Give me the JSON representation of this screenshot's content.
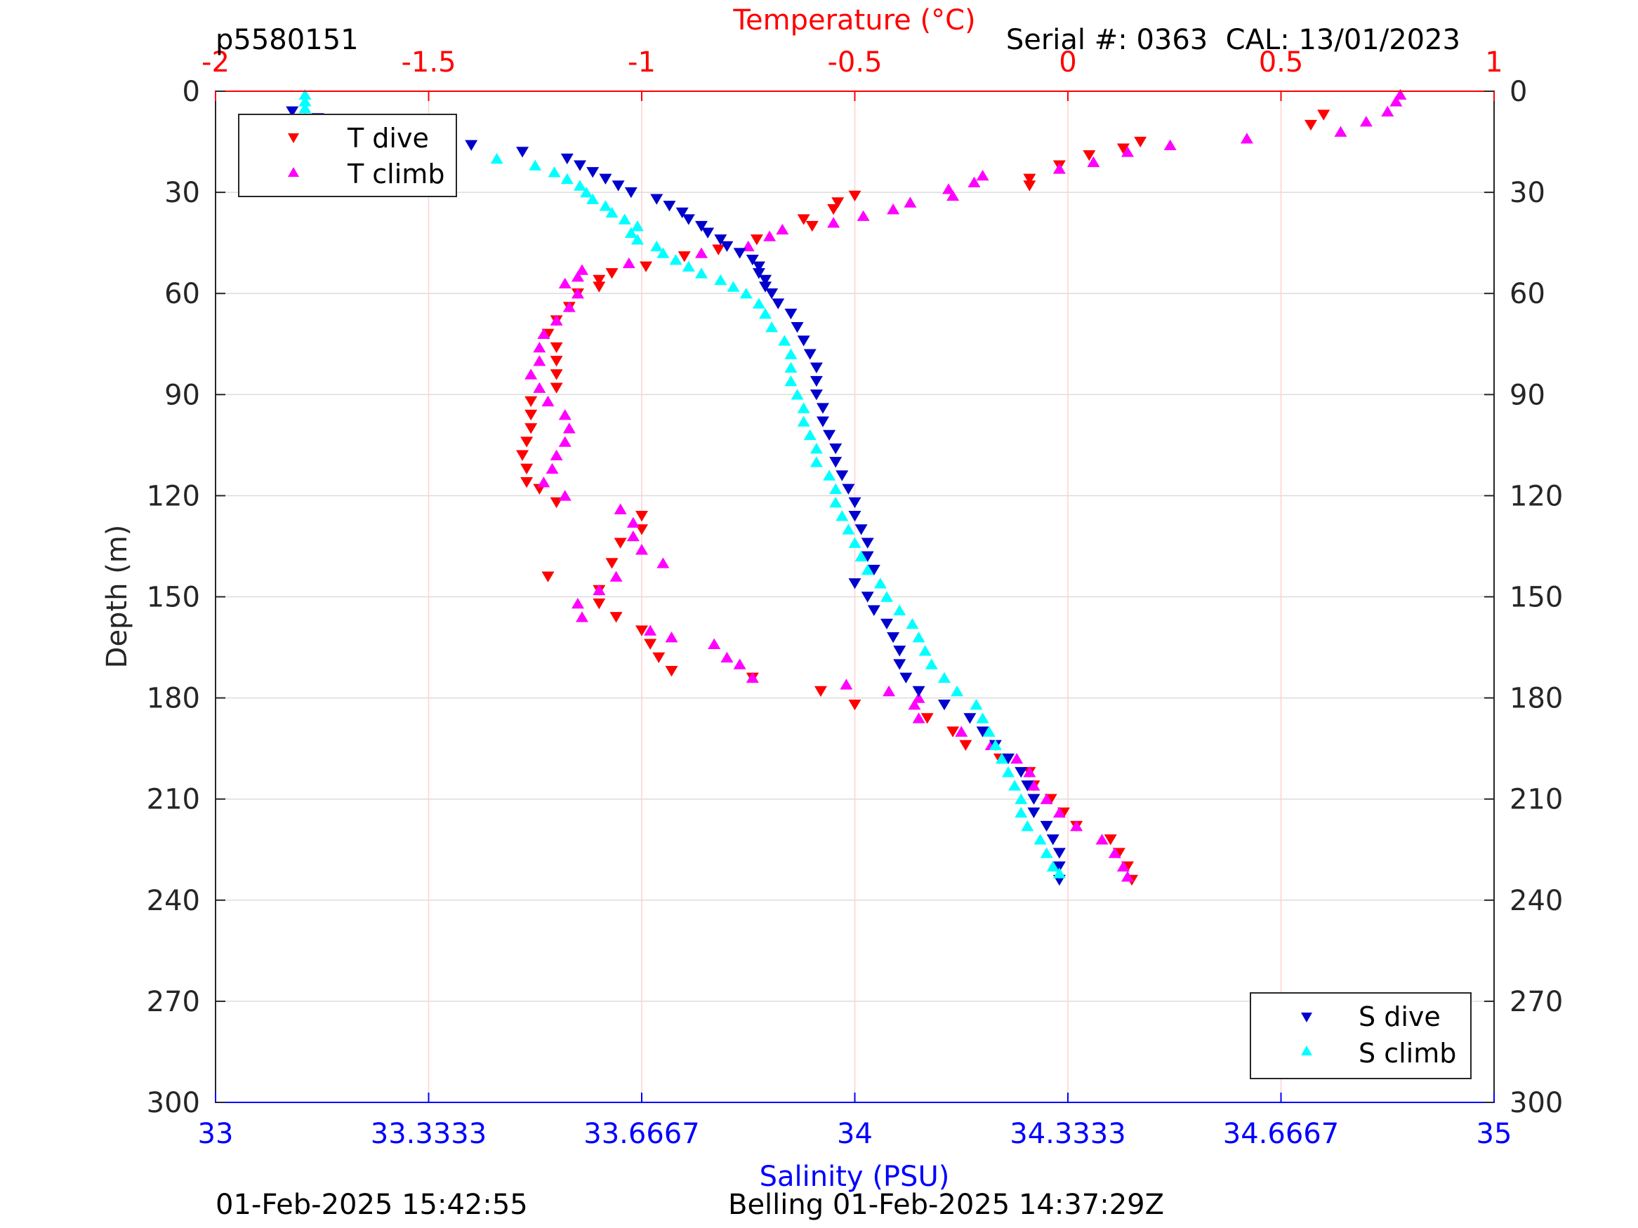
{
  "header": {
    "profile_id": "p5580151",
    "serial_cal": "Serial #: 0363  CAL: 13/01/2023"
  },
  "footer": {
    "plot_time": "01-Feb-2025 15:42:55",
    "station_time": "Belling 01-Feb-2025 14:37:29Z"
  },
  "colors": {
    "temperature_axis": "#ff0000",
    "salinity_axis": "#0000ff",
    "t_dive": "#ff0000",
    "t_climb": "#ff00ff",
    "s_dive": "#0000cc",
    "s_climb": "#00ffff"
  },
  "chart_data": {
    "type": "scatter",
    "ylabel": "Depth (m)",
    "ylim": [
      0,
      300
    ],
    "y_reversed": true,
    "yticks": [
      "0",
      "30",
      "60",
      "90",
      "120",
      "150",
      "180",
      "210",
      "240",
      "270",
      "300"
    ],
    "x_top": {
      "label": "Temperature (°C)",
      "lim": [
        -2,
        1
      ],
      "ticks": [
        "-2",
        "-1.5",
        "-1",
        "-0.5",
        "0",
        "0.5",
        "1"
      ]
    },
    "x_bottom": {
      "label": "Salinity (PSU)",
      "lim": [
        33,
        35
      ],
      "ticks": [
        "33",
        "33.3333",
        "33.6667",
        "34",
        "34.3333",
        "34.6667",
        "35"
      ]
    },
    "grid": true,
    "legend_temperature": {
      "placement": "top-left",
      "entries": [
        "T dive",
        "T climb"
      ]
    },
    "legend_salinity": {
      "placement": "bottom-right",
      "entries": [
        "S dive",
        "S climb"
      ]
    },
    "series": [
      {
        "name": "T dive",
        "axis": "temperature",
        "marker": "triangle-down",
        "depth": [
          7,
          10,
          15,
          17,
          19,
          22,
          26,
          28,
          31,
          33,
          35,
          38,
          40,
          44,
          47,
          49,
          52,
          54,
          56,
          58,
          60,
          64,
          68,
          72,
          76,
          80,
          84,
          88,
          92,
          96,
          100,
          104,
          108,
          112,
          116,
          118,
          122,
          126,
          130,
          134,
          140,
          144,
          148,
          152,
          156,
          160,
          164,
          168,
          172,
          174,
          178,
          182,
          186,
          190,
          194,
          198,
          202,
          206,
          210,
          214,
          218,
          222,
          226,
          230,
          234
        ],
        "values": [
          0.6,
          0.57,
          0.17,
          0.13,
          0.05,
          -0.02,
          -0.09,
          -0.09,
          -0.5,
          -0.54,
          -0.55,
          -0.62,
          -0.6,
          -0.73,
          -0.82,
          -0.9,
          -0.99,
          -1.07,
          -1.1,
          -1.1,
          -1.15,
          -1.17,
          -1.2,
          -1.22,
          -1.2,
          -1.2,
          -1.2,
          -1.2,
          -1.26,
          -1.26,
          -1.26,
          -1.27,
          -1.28,
          -1.27,
          -1.27,
          -1.24,
          -1.2,
          -1.0,
          -1.0,
          -1.05,
          -1.07,
          -1.22,
          -1.1,
          -1.1,
          -1.06,
          -1.0,
          -0.98,
          -0.96,
          -0.93,
          -0.74,
          -0.58,
          -0.5,
          -0.33,
          -0.27,
          -0.24,
          -0.16,
          -0.09,
          -0.08,
          -0.04,
          -0.01,
          0.02,
          0.1,
          0.12,
          0.14,
          0.15
        ]
      },
      {
        "name": "T climb",
        "axis": "temperature",
        "marker": "triangle-up",
        "depth": [
          1,
          3,
          6,
          9,
          12,
          14,
          16,
          18,
          21,
          23,
          25,
          27,
          29,
          31,
          33,
          35,
          37,
          39,
          41,
          43,
          46,
          48,
          51,
          53,
          55,
          57,
          60,
          64,
          68,
          72,
          76,
          80,
          84,
          88,
          92,
          96,
          100,
          104,
          108,
          112,
          116,
          120,
          124,
          128,
          132,
          136,
          140,
          144,
          148,
          152,
          156,
          160,
          162,
          164,
          168,
          170,
          174,
          176,
          178,
          180,
          182,
          186,
          190,
          194,
          198,
          202,
          206,
          210,
          214,
          218,
          222,
          226,
          230,
          233
        ],
        "values": [
          0.78,
          0.77,
          0.75,
          0.7,
          0.64,
          0.42,
          0.24,
          0.14,
          0.06,
          -0.02,
          -0.2,
          -0.22,
          -0.28,
          -0.27,
          -0.37,
          -0.41,
          -0.48,
          -0.55,
          -0.67,
          -0.7,
          -0.75,
          -0.86,
          -1.03,
          -1.14,
          -1.15,
          -1.18,
          -1.15,
          -1.17,
          -1.2,
          -1.23,
          -1.24,
          -1.24,
          -1.26,
          -1.24,
          -1.22,
          -1.18,
          -1.17,
          -1.18,
          -1.2,
          -1.21,
          -1.23,
          -1.18,
          -1.05,
          -1.02,
          -1.02,
          -1.0,
          -0.95,
          -1.06,
          -1.1,
          -1.15,
          -1.14,
          -0.98,
          -0.93,
          -0.83,
          -0.8,
          -0.77,
          -0.74,
          -0.52,
          -0.42,
          -0.35,
          -0.36,
          -0.35,
          -0.25,
          -0.18,
          -0.12,
          -0.09,
          -0.08,
          -0.05,
          -0.02,
          0.02,
          0.08,
          0.11,
          0.13,
          0.14
        ]
      },
      {
        "name": "S dive",
        "axis": "salinity",
        "marker": "triangle-down",
        "depth": [
          6,
          8,
          10,
          12,
          14,
          16,
          18,
          20,
          22,
          24,
          26,
          28,
          30,
          32,
          34,
          36,
          38,
          40,
          42,
          44,
          46,
          48,
          50,
          52,
          54,
          56,
          58,
          60,
          63,
          66,
          70,
          74,
          78,
          82,
          86,
          90,
          94,
          98,
          102,
          106,
          110,
          114,
          118,
          122,
          126,
          130,
          134,
          138,
          142,
          146,
          150,
          154,
          158,
          162,
          166,
          170,
          174,
          178,
          182,
          186,
          190,
          194,
          198,
          202,
          206,
          210,
          214,
          218,
          222,
          226,
          230,
          234
        ],
        "values": [
          33.12,
          33.16,
          33.2,
          33.25,
          33.33,
          33.4,
          33.48,
          33.55,
          33.57,
          33.59,
          33.61,
          33.63,
          33.65,
          33.69,
          33.71,
          33.73,
          33.74,
          33.76,
          33.77,
          33.79,
          33.8,
          33.82,
          33.84,
          33.85,
          33.85,
          33.86,
          33.86,
          33.87,
          33.88,
          33.9,
          33.91,
          33.92,
          33.93,
          33.94,
          33.94,
          33.94,
          33.95,
          33.95,
          33.96,
          33.97,
          33.97,
          33.98,
          33.99,
          34.0,
          34.0,
          34.01,
          34.02,
          34.02,
          34.03,
          34.0,
          34.02,
          34.03,
          34.05,
          34.06,
          34.07,
          34.07,
          34.08,
          34.1,
          34.14,
          34.18,
          34.2,
          34.22,
          34.24,
          34.26,
          34.27,
          34.28,
          34.28,
          34.3,
          34.31,
          34.32,
          34.32,
          34.32
        ]
      },
      {
        "name": "S climb",
        "axis": "salinity",
        "marker": "triangle-up",
        "depth": [
          1,
          3,
          5,
          8,
          10,
          12,
          14,
          16,
          18,
          20,
          22,
          24,
          26,
          28,
          30,
          32,
          34,
          36,
          38,
          40,
          42,
          44,
          46,
          48,
          50,
          52,
          54,
          56,
          58,
          60,
          63,
          66,
          70,
          74,
          78,
          82,
          86,
          90,
          94,
          98,
          102,
          106,
          110,
          114,
          118,
          122,
          126,
          130,
          134,
          138,
          142,
          146,
          150,
          154,
          158,
          162,
          166,
          170,
          174,
          178,
          182,
          186,
          190,
          194,
          198,
          202,
          206,
          210,
          214,
          218,
          222,
          226,
          230,
          232
        ],
        "values": [
          33.14,
          33.14,
          33.14,
          33.14,
          33.15,
          33.18,
          33.22,
          33.28,
          33.36,
          33.44,
          33.5,
          33.53,
          33.55,
          33.57,
          33.58,
          33.59,
          33.61,
          33.62,
          33.64,
          33.66,
          33.65,
          33.66,
          33.69,
          33.7,
          33.72,
          33.74,
          33.76,
          33.79,
          33.81,
          33.83,
          33.85,
          33.86,
          33.87,
          33.89,
          33.9,
          33.9,
          33.9,
          33.91,
          33.92,
          33.92,
          33.93,
          33.94,
          33.94,
          33.96,
          33.97,
          33.97,
          33.98,
          33.99,
          34.0,
          34.01,
          34.02,
          34.04,
          34.05,
          34.07,
          34.09,
          34.1,
          34.11,
          34.12,
          34.14,
          34.16,
          34.19,
          34.2,
          34.21,
          34.22,
          34.23,
          34.24,
          34.25,
          34.26,
          34.26,
          34.27,
          34.29,
          34.3,
          34.31,
          34.32
        ]
      }
    ]
  }
}
